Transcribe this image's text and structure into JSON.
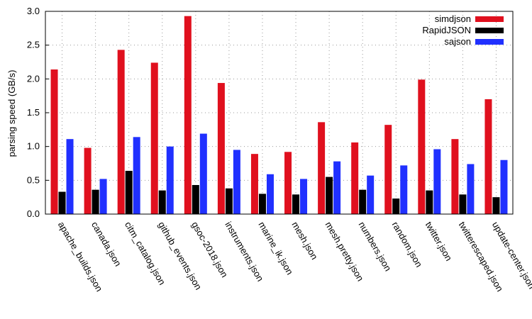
{
  "chart_data": {
    "type": "bar",
    "ylabel": "parsing speed (GB/s)",
    "categories": [
      "apache_builds.json",
      "canada.json",
      "citm_catalog.json",
      "github_events.json",
      "gsoc-2018.json",
      "instruments.json",
      "marine_ik.json",
      "mesh.json",
      "mesh.pretty.json",
      "numbers.json",
      "random.json",
      "twitter.json",
      "twitterescaped.json",
      "update-center.json"
    ],
    "series": [
      {
        "name": "simdjson",
        "color": "#e0101e",
        "values": [
          2.14,
          0.98,
          2.43,
          2.24,
          2.93,
          1.94,
          0.89,
          0.92,
          1.36,
          1.06,
          1.32,
          1.99,
          1.11,
          1.7
        ]
      },
      {
        "name": "RapidJSON",
        "color": "#000000",
        "values": [
          0.33,
          0.36,
          0.64,
          0.35,
          0.43,
          0.38,
          0.3,
          0.29,
          0.55,
          0.36,
          0.23,
          0.35,
          0.29,
          0.25
        ]
      },
      {
        "name": "sajson",
        "color": "#2030ff",
        "values": [
          1.11,
          0.52,
          1.14,
          1.0,
          1.19,
          0.95,
          0.59,
          0.52,
          0.78,
          0.57,
          0.72,
          0.96,
          0.74,
          0.8
        ]
      }
    ],
    "ylim": [
      0,
      3
    ],
    "yticks": [
      {
        "value": 0,
        "label": "0.0"
      },
      0.5,
      {
        "value": 1,
        "label": "1.0"
      },
      1.5,
      {
        "value": 2,
        "label": "2.0"
      },
      2.5,
      {
        "value": 3,
        "label": "3.0"
      }
    ],
    "grid": true,
    "legend": "top-right"
  }
}
